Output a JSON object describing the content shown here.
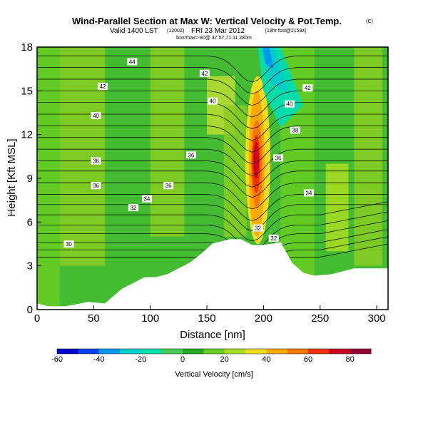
{
  "chart_data": {
    "type": "heatmap",
    "title": "Wind-Parallel Section at Max W: Vertical Velocity & Pot.Temp.",
    "title_mark": "(C)",
    "subtitle_main": "Valid 1400 LST",
    "subtitle_utc": "(1200Z)",
    "subtitle_date": "FRI 23 Mar 2012",
    "subtitle_fcst": "[18hr fcst@2159z]",
    "sub_line2": "box/max=-80@ 37.57,71.11 280m",
    "xlabel": "Distance [nm]",
    "ylabel": "Height [Kft MSL]",
    "xlim": [
      0,
      310
    ],
    "ylim": [
      0,
      18
    ],
    "xticks": [
      "0",
      "50",
      "100",
      "150",
      "200",
      "250",
      "300"
    ],
    "yticks": [
      "0",
      "3",
      "6",
      "9",
      "12",
      "15",
      "18"
    ],
    "colorbar": {
      "label": "Vertical Velocity [cm/s]",
      "min": -60,
      "max": 90,
      "ticks": [
        "-60",
        "-40",
        "-20",
        "0",
        "20",
        "40",
        "60",
        "80"
      ],
      "colors": [
        "#0000cc",
        "#0044ee",
        "#0099ee",
        "#00cccc",
        "#00ddaa",
        "#44cc55",
        "#22aa22",
        "#66cc22",
        "#aadd22",
        "#eedd22",
        "#ffaa00",
        "#ff7700",
        "#ee3300",
        "#cc0022",
        "#990033"
      ]
    },
    "terrain": [
      [
        0,
        0.4
      ],
      [
        10,
        0.2
      ],
      [
        25,
        0.2
      ],
      [
        45,
        0.5
      ],
      [
        60,
        0.4
      ],
      [
        75,
        1.4
      ],
      [
        85,
        1.8
      ],
      [
        95,
        2.2
      ],
      [
        105,
        2.2
      ],
      [
        115,
        2.4
      ],
      [
        125,
        2.8
      ],
      [
        135,
        3.2
      ],
      [
        145,
        3.8
      ],
      [
        155,
        4.5
      ],
      [
        170,
        4.8
      ],
      [
        180,
        4.8
      ],
      [
        190,
        4.4
      ],
      [
        200,
        4.4
      ],
      [
        215,
        4.6
      ],
      [
        225,
        3.2
      ],
      [
        235,
        2.5
      ],
      [
        245,
        2.3
      ],
      [
        260,
        2.4
      ],
      [
        280,
        2.8
      ],
      [
        300,
        2.8
      ],
      [
        310,
        2.8
      ]
    ],
    "contour_labels": [
      {
        "text": "44",
        "x": 84,
        "y": 17.0
      },
      {
        "text": "42",
        "x": 148,
        "y": 16.2
      },
      {
        "text": "42",
        "x": 58,
        "y": 15.3
      },
      {
        "text": "40",
        "x": 155,
        "y": 14.3
      },
      {
        "text": "40",
        "x": 52,
        "y": 13.3
      },
      {
        "text": "42",
        "x": 239,
        "y": 15.2
      },
      {
        "text": "40",
        "x": 223,
        "y": 14.1
      },
      {
        "text": "38",
        "x": 228,
        "y": 12.3
      },
      {
        "text": "36",
        "x": 52,
        "y": 10.2
      },
      {
        "text": "36",
        "x": 136,
        "y": 10.6
      },
      {
        "text": "36",
        "x": 213,
        "y": 10.4
      },
      {
        "text": "36",
        "x": 52,
        "y": 8.5
      },
      {
        "text": "36",
        "x": 116,
        "y": 8.5
      },
      {
        "text": "34",
        "x": 97,
        "y": 7.6
      },
      {
        "text": "34",
        "x": 240,
        "y": 8.0
      },
      {
        "text": "32",
        "x": 85,
        "y": 7.0
      },
      {
        "text": "32",
        "x": 195,
        "y": 5.6
      },
      {
        "text": "32",
        "x": 209,
        "y": 4.9
      },
      {
        "text": "30",
        "x": 28,
        "y": 4.5
      }
    ]
  }
}
